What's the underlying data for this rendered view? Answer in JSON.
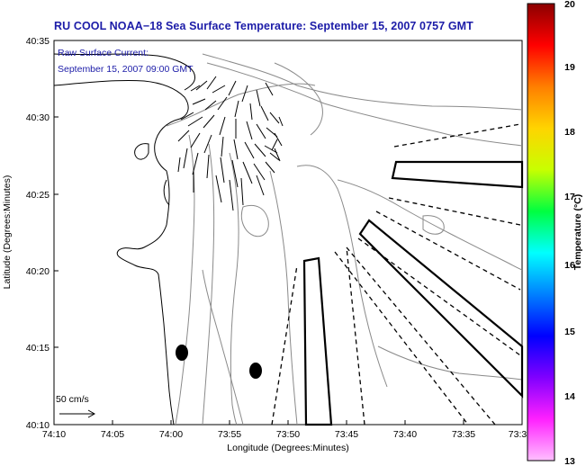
{
  "title": "RU COOL  NOAA−18  Sea Surface Temperature:  September 15, 2007 0757 GMT",
  "annotation": {
    "line1": "Raw Surface Current:",
    "line2": "September 15, 2007 09:00 GMT"
  },
  "scale_label": "50 cm/s",
  "x_axis": {
    "label": "Longitude (Degrees:Minutes)",
    "ticks": [
      "74:10",
      "74:05",
      "74:00",
      "73:55",
      "73:50",
      "73:45",
      "73:40",
      "73:35",
      "73:3"
    ]
  },
  "y_axis": {
    "label": "Latitude (Degrees:Minutes)",
    "ticks": [
      "40:35",
      "40:30",
      "40:25",
      "40:20",
      "40:15",
      "40:10"
    ]
  },
  "colorbar": {
    "label": "Temperature (°C)",
    "ticks": [
      "20",
      "19",
      "18",
      "17",
      "16",
      "15",
      "14",
      "13"
    ],
    "colors": [
      "#8b0000",
      "#ff0000",
      "#ff7f00",
      "#ffd400",
      "#c8ff00",
      "#00ff40",
      "#00ffff",
      "#0080ff",
      "#0000ff",
      "#8000ff",
      "#ff20ff",
      "#ffc0ff"
    ]
  },
  "colors": {
    "title": "#1c1ca8",
    "annotation": "#1c1ca8",
    "contour": "#808080",
    "coast": "#000000"
  }
}
